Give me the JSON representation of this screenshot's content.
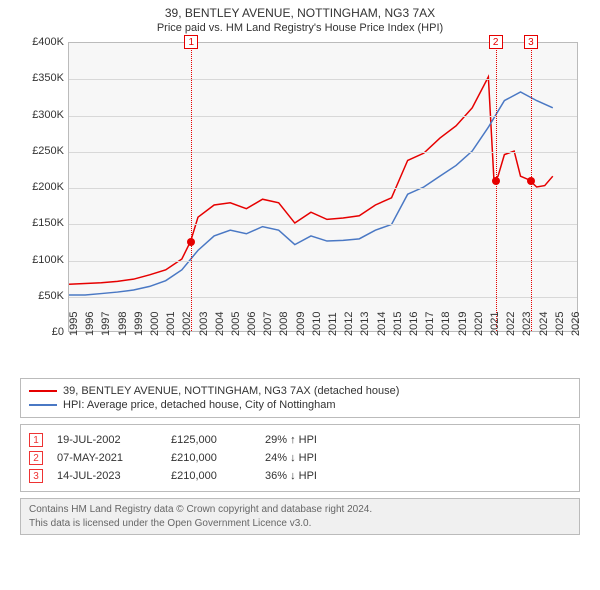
{
  "title": "39, BENTLEY AVENUE, NOTTINGHAM, NG3 7AX",
  "subtitle": "Price paid vs. HM Land Registry's House Price Index (HPI)",
  "chart": {
    "type": "line",
    "plot_bg": "#f7f7f7",
    "grid_color": "#d8d8d8",
    "border_color": "#bbbbbb",
    "x_years": [
      1995,
      1996,
      1997,
      1998,
      1999,
      2000,
      2001,
      2002,
      2003,
      2004,
      2005,
      2006,
      2007,
      2008,
      2009,
      2010,
      2011,
      2012,
      2013,
      2014,
      2015,
      2016,
      2017,
      2018,
      2019,
      2020,
      2021,
      2022,
      2023,
      2024,
      2025,
      2026
    ],
    "xlim": [
      1995,
      2026.5
    ],
    "ylim": [
      0,
      400000
    ],
    "ytick_step": 50000,
    "yprefix": "£",
    "ysuffix_k": "K",
    "xtick_fontsize": 11,
    "ytick_fontsize": 11,
    "xtick_rotation": -90,
    "series": [
      {
        "name": "subject",
        "color": "#e60000",
        "width": 1.5,
        "points": [
          [
            1995,
            65000
          ],
          [
            1996,
            66000
          ],
          [
            1997,
            67000
          ],
          [
            1998,
            69000
          ],
          [
            1999,
            72000
          ],
          [
            2000,
            78000
          ],
          [
            2001,
            85000
          ],
          [
            2002,
            100000
          ],
          [
            2002.55,
            125000
          ],
          [
            2003,
            158000
          ],
          [
            2004,
            175000
          ],
          [
            2005,
            178000
          ],
          [
            2006,
            170000
          ],
          [
            2007,
            183000
          ],
          [
            2008,
            178000
          ],
          [
            2009,
            150000
          ],
          [
            2010,
            165000
          ],
          [
            2011,
            155000
          ],
          [
            2012,
            157000
          ],
          [
            2013,
            160000
          ],
          [
            2014,
            175000
          ],
          [
            2015,
            185000
          ],
          [
            2016,
            237000
          ],
          [
            2017,
            247000
          ],
          [
            2018,
            268000
          ],
          [
            2019,
            285000
          ],
          [
            2020,
            310000
          ],
          [
            2021,
            353000
          ],
          [
            2021.35,
            210000
          ],
          [
            2021.6,
            215000
          ],
          [
            2022,
            245000
          ],
          [
            2022.6,
            250000
          ],
          [
            2023,
            215000
          ],
          [
            2023.53,
            210000
          ],
          [
            2024,
            200000
          ],
          [
            2024.5,
            202000
          ],
          [
            2025,
            215000
          ]
        ]
      },
      {
        "name": "hpi",
        "color": "#4a78c4",
        "width": 1.5,
        "points": [
          [
            1995,
            50000
          ],
          [
            1996,
            50000
          ],
          [
            1997,
            52000
          ],
          [
            1998,
            54000
          ],
          [
            1999,
            57000
          ],
          [
            2000,
            62000
          ],
          [
            2001,
            70000
          ],
          [
            2002,
            85000
          ],
          [
            2003,
            112000
          ],
          [
            2004,
            132000
          ],
          [
            2005,
            140000
          ],
          [
            2006,
            135000
          ],
          [
            2007,
            145000
          ],
          [
            2008,
            140000
          ],
          [
            2009,
            120000
          ],
          [
            2010,
            132000
          ],
          [
            2011,
            125000
          ],
          [
            2012,
            126000
          ],
          [
            2013,
            128000
          ],
          [
            2014,
            140000
          ],
          [
            2015,
            148000
          ],
          [
            2016,
            190000
          ],
          [
            2017,
            200000
          ],
          [
            2018,
            215000
          ],
          [
            2019,
            230000
          ],
          [
            2020,
            250000
          ],
          [
            2021,
            283000
          ],
          [
            2022,
            320000
          ],
          [
            2023,
            332000
          ],
          [
            2024,
            320000
          ],
          [
            2025,
            310000
          ]
        ]
      }
    ],
    "markers": [
      {
        "x": 2002.55,
        "y": 125000,
        "color": "#e60000"
      },
      {
        "x": 2021.35,
        "y": 210000,
        "color": "#e60000"
      },
      {
        "x": 2023.53,
        "y": 210000,
        "color": "#e60000"
      }
    ],
    "event_lines": [
      {
        "n": 1,
        "x": 2002.55,
        "color": "#e60000"
      },
      {
        "n": 2,
        "x": 2021.35,
        "color": "#e60000"
      },
      {
        "n": 3,
        "x": 2023.53,
        "color": "#e60000"
      }
    ]
  },
  "legend": {
    "items": [
      {
        "color": "#e60000",
        "label": "39, BENTLEY AVENUE, NOTTINGHAM, NG3 7AX (detached house)"
      },
      {
        "color": "#4a78c4",
        "label": "HPI: Average price, detached house, City of Nottingham"
      }
    ]
  },
  "events": [
    {
      "n": "1",
      "date": "19-JUL-2002",
      "price": "£125,000",
      "hpi": "29% ↑ HPI"
    },
    {
      "n": "2",
      "date": "07-MAY-2021",
      "price": "£210,000",
      "hpi": "24% ↓ HPI"
    },
    {
      "n": "3",
      "date": "14-JUL-2023",
      "price": "£210,000",
      "hpi": "36% ↓ HPI"
    }
  ],
  "attribution": {
    "line1": "Contains HM Land Registry data © Crown copyright and database right 2024.",
    "line2": "This data is licensed under the Open Government Licence v3.0."
  }
}
